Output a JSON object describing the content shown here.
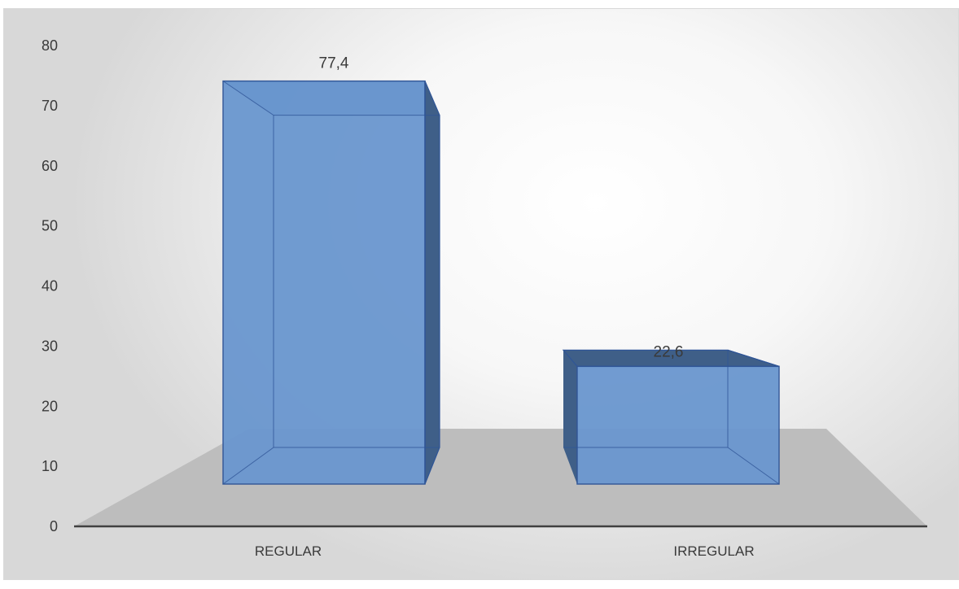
{
  "chart_data": {
    "type": "bar",
    "title": "",
    "xlabel": "",
    "ylabel": "",
    "categories": [
      "REGULAR",
      "IRREGULAR"
    ],
    "values": [
      77.4,
      22.6
    ],
    "data_labels": [
      "77,4",
      "22,6"
    ],
    "ylim": [
      0,
      80
    ],
    "yticks": [
      0,
      10,
      20,
      30,
      40,
      50,
      60,
      70,
      80
    ],
    "grid": false,
    "legend": "none",
    "style": "3d",
    "colors": {
      "bar_front": "#6a97cf",
      "bar_side": "#3f5f88",
      "bar_top": "#5b87bf",
      "bar_edge": "#2f5597",
      "floor": "#bdbdbd",
      "axis_line": "#404040"
    }
  }
}
